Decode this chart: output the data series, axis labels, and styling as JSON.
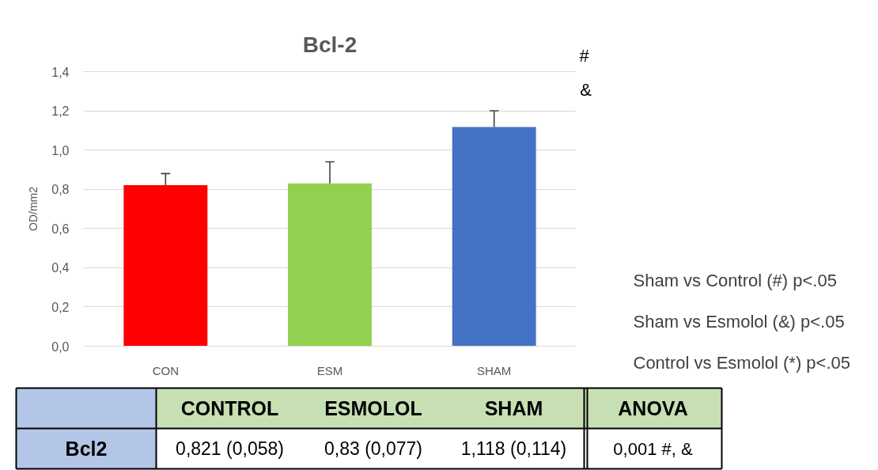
{
  "chart_data": {
    "type": "bar",
    "title": "Bcl-2",
    "ylabel": "OD/mm2",
    "categories": [
      "CON",
      "ESM",
      "SHAM"
    ],
    "values": [
      0.821,
      0.83,
      1.118
    ],
    "colors": [
      "#ff0000",
      "#92d050",
      "#4472c4"
    ],
    "errors": [
      [
        0.821,
        0.88
      ],
      [
        0.83,
        0.94
      ],
      [
        1.118,
        1.2
      ]
    ],
    "value_labels": [
      "0,821 (0,058)",
      "0,83 (0,077)",
      "1,118 (0,114)"
    ],
    "ylim": [
      0,
      1.4
    ],
    "yticks": [
      {
        "value": 0,
        "label": "0,0"
      },
      {
        "value": 0.2,
        "label": "0,2"
      },
      {
        "value": 0.4,
        "label": "0,4"
      },
      {
        "value": 0.6,
        "label": "0,6"
      },
      {
        "value": 0.8,
        "label": "0,8"
      },
      {
        "value": 1.0,
        "label": "1,0"
      },
      {
        "value": 1.2,
        "label": "1,2"
      },
      {
        "value": 1.4,
        "label": "1,4"
      }
    ],
    "grid": "y",
    "annotations": [
      "#",
      "&",
      "Sham vs Control (#) p<.05",
      "Sham vs Esmolol (&) p<.05",
      "Control vs Esmolol (*) p<.05",
      "CONTROL",
      "ESMOLOL",
      "SHAM",
      "ANOVA",
      "Bcl2",
      "0,001 #, &"
    ]
  }
}
